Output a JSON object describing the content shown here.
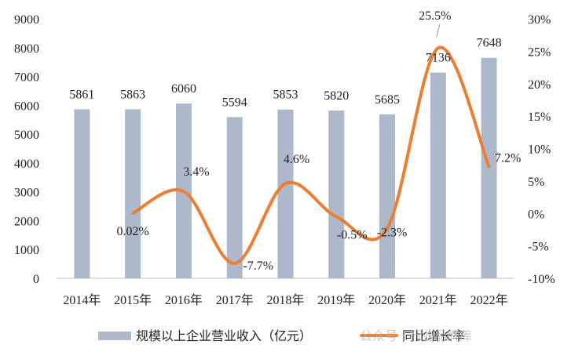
{
  "chart_data": {
    "type": "bar+line",
    "categories": [
      "2014年",
      "2015年",
      "2016年",
      "2017年",
      "2018年",
      "2019年",
      "2020年",
      "2021年",
      "2022年"
    ],
    "series": [
      {
        "name": "规模以上企业营业收入（亿元）",
        "type": "bar",
        "axis": "left",
        "values": [
          5861,
          5863,
          6060,
          5594,
          5853,
          5820,
          5685,
          7136,
          7648
        ],
        "labels": [
          "5861",
          "5863",
          "6060",
          "5594",
          "5853",
          "5820",
          "5685",
          "7136",
          "7648"
        ],
        "color": "#adb9ca"
      },
      {
        "name": "同比增长率",
        "type": "line",
        "axis": "right",
        "x": [
          "2015年",
          "2016年",
          "2017年",
          "2018年",
          "2019年",
          "2020年",
          "2021年",
          "2022年"
        ],
        "values": [
          0.02,
          3.4,
          -7.7,
          4.6,
          -0.5,
          -2.3,
          25.5,
          7.2
        ],
        "labels": [
          "0.02%",
          "3.4%",
          "-7.7%",
          "4.6%",
          "-0.5%",
          "-2.3%",
          "25.5%",
          "7.2%"
        ],
        "color": "#ed7d31"
      }
    ],
    "left_axis": {
      "min": 0,
      "max": 9000,
      "ticks": [
        "0",
        "1000",
        "2000",
        "3000",
        "4000",
        "5000",
        "6000",
        "7000",
        "8000",
        "9000"
      ]
    },
    "right_axis": {
      "min": -10,
      "max": 30,
      "ticks": [
        "-10%",
        "-5%",
        "0%",
        "5%",
        "10%",
        "15%",
        "20%",
        "25%",
        "30%"
      ]
    },
    "legend": {
      "position": "bottom"
    }
  },
  "watermark": "公众号 · 行业品牌库"
}
